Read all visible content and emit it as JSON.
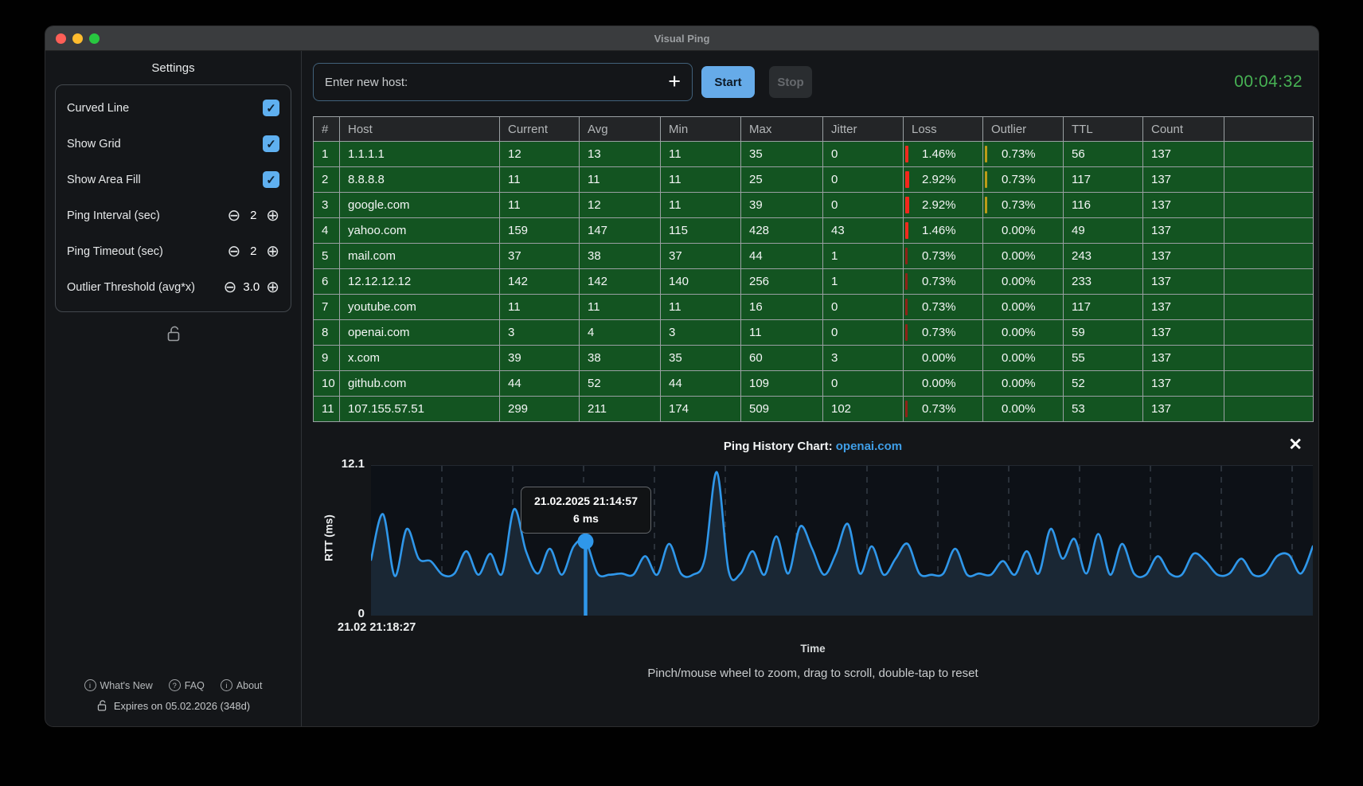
{
  "colors": {
    "accent_blue": "#66abe9",
    "row_green": "#135421",
    "timer_green": "#47b254",
    "loss_red": "#ee2a1e",
    "outlier_yellow": "#bb9c17",
    "chart_line_blue": "#2f97ea"
  },
  "window": {
    "title": "Visual Ping"
  },
  "sidebar": {
    "title": "Settings",
    "check_glyph": "✓",
    "minus_glyph": "⊖",
    "plus_glyph": "⊕",
    "checkboxes": [
      {
        "label": "Curved Line",
        "checked": true
      },
      {
        "label": "Show Grid",
        "checked": true
      },
      {
        "label": "Show Area Fill",
        "checked": true
      }
    ],
    "steppers": [
      {
        "label": "Ping Interval (sec)",
        "value": "2"
      },
      {
        "label": "Ping Timeout (sec)",
        "value": "2"
      },
      {
        "label": "Outlier Threshold (avg*x)",
        "value": "3.0"
      }
    ],
    "footer_links": [
      {
        "icon_letter": "i",
        "label": "What's New"
      },
      {
        "icon_letter": "?",
        "label": "FAQ"
      },
      {
        "icon_letter": "i",
        "label": "About"
      }
    ],
    "license": "Expires on 05.02.2026 (348d)"
  },
  "toolbar": {
    "host_input_placeholder": "Enter new host:",
    "add_glyph": "+",
    "start_label": "Start",
    "stop_label": "Stop",
    "timer": "00:04:32"
  },
  "table": {
    "columns": [
      "#",
      "Host",
      "Current",
      "Avg",
      "Min",
      "Max",
      "Jitter",
      "Loss",
      "Outlier",
      "TTL",
      "Count",
      ""
    ],
    "rows": [
      {
        "num": "1",
        "host": "1.1.1.1",
        "current": "12",
        "avg": "13",
        "min": "11",
        "max": "35",
        "jitter": "0",
        "loss": "1.46%",
        "loss_level": "med",
        "outlier": "0.73%",
        "outlier_level": "low",
        "ttl": "56",
        "count": "137"
      },
      {
        "num": "2",
        "host": "8.8.8.8",
        "current": "11",
        "avg": "11",
        "min": "11",
        "max": "25",
        "jitter": "0",
        "loss": "2.92%",
        "loss_level": "high",
        "outlier": "0.73%",
        "outlier_level": "low",
        "ttl": "117",
        "count": "137"
      },
      {
        "num": "3",
        "host": "google.com",
        "current": "11",
        "avg": "12",
        "min": "11",
        "max": "39",
        "jitter": "0",
        "loss": "2.92%",
        "loss_level": "high",
        "outlier": "0.73%",
        "outlier_level": "low",
        "ttl": "116",
        "count": "137"
      },
      {
        "num": "4",
        "host": "yahoo.com",
        "current": "159",
        "avg": "147",
        "min": "115",
        "max": "428",
        "jitter": "43",
        "loss": "1.46%",
        "loss_level": "med",
        "outlier": "0.00%",
        "outlier_level": "none",
        "ttl": "49",
        "count": "137"
      },
      {
        "num": "5",
        "host": "mail.com",
        "current": "37",
        "avg": "38",
        "min": "37",
        "max": "44",
        "jitter": "1",
        "loss": "0.73%",
        "loss_level": "low",
        "outlier": "0.00%",
        "outlier_level": "none",
        "ttl": "243",
        "count": "137"
      },
      {
        "num": "6",
        "host": "12.12.12.12",
        "current": "142",
        "avg": "142",
        "min": "140",
        "max": "256",
        "jitter": "1",
        "loss": "0.73%",
        "loss_level": "low",
        "outlier": "0.00%",
        "outlier_level": "none",
        "ttl": "233",
        "count": "137"
      },
      {
        "num": "7",
        "host": "youtube.com",
        "current": "11",
        "avg": "11",
        "min": "11",
        "max": "16",
        "jitter": "0",
        "loss": "0.73%",
        "loss_level": "low",
        "outlier": "0.00%",
        "outlier_level": "none",
        "ttl": "117",
        "count": "137"
      },
      {
        "num": "8",
        "host": "openai.com",
        "current": "3",
        "avg": "4",
        "min": "3",
        "max": "11",
        "jitter": "0",
        "loss": "0.73%",
        "loss_level": "low",
        "outlier": "0.00%",
        "outlier_level": "none",
        "ttl": "59",
        "count": "137"
      },
      {
        "num": "9",
        "host": "x.com",
        "current": "39",
        "avg": "38",
        "min": "35",
        "max": "60",
        "jitter": "3",
        "loss": "0.00%",
        "loss_level": "none",
        "outlier": "0.00%",
        "outlier_level": "none",
        "ttl": "55",
        "count": "137"
      },
      {
        "num": "10",
        "host": "github.com",
        "current": "44",
        "avg": "52",
        "min": "44",
        "max": "109",
        "jitter": "0",
        "loss": "0.00%",
        "loss_level": "none",
        "outlier": "0.00%",
        "outlier_level": "none",
        "ttl": "52",
        "count": "137"
      },
      {
        "num": "11",
        "host": "107.155.57.51",
        "current": "299",
        "avg": "211",
        "min": "174",
        "max": "509",
        "jitter": "102",
        "loss": "0.73%",
        "loss_level": "low",
        "outlier": "0.00%",
        "outlier_level": "none",
        "ttl": "53",
        "count": "137"
      }
    ]
  },
  "chart": {
    "title_prefix": "Ping History Chart: ",
    "host": "openai.com",
    "close_glyph": "✕",
    "y_max_label": "12.1",
    "y_min_label": "0",
    "y_axis_label": "RTT (ms)",
    "x_first_tick": "21.02 21:18:27",
    "x_axis_label": "Time",
    "hint": "Pinch/mouse wheel to zoom, drag to scroll, double-tap to reset",
    "tooltip": {
      "line1": "21.02.2025 21:14:57",
      "line2": "6 ms"
    }
  },
  "chart_data": {
    "type": "line",
    "title": "Ping History Chart: openai.com",
    "xlabel": "Time",
    "ylabel": "RTT (ms)",
    "ylim": [
      0,
      12.1
    ],
    "x_start_label": "21.02 21:18:27",
    "grid": "vertical-dashed",
    "legend": "none",
    "marker": {
      "index": 18,
      "value": 6,
      "time_label": "21.02.2025 21:14:57",
      "value_label": "6 ms"
    },
    "series": [
      {
        "name": "openai.com RTT (ms)",
        "values": [
          4.5,
          8.2,
          3.2,
          7.0,
          4.6,
          4.4,
          3.3,
          3.4,
          5.2,
          3.3,
          5.0,
          3.4,
          8.6,
          5.2,
          3.4,
          5.4,
          3.3,
          5.6,
          6.0,
          3.4,
          3.3,
          3.4,
          3.3,
          4.8,
          3.3,
          5.8,
          3.4,
          3.3,
          4.6,
          11.6,
          3.6,
          3.4,
          5.2,
          3.3,
          6.4,
          3.4,
          7.2,
          5.4,
          3.3,
          5.0,
          7.4,
          3.4,
          5.6,
          3.3,
          4.6,
          5.8,
          3.4,
          3.3,
          3.4,
          5.4,
          3.3,
          3.4,
          3.3,
          4.4,
          3.3,
          5.2,
          3.4,
          7.0,
          4.6,
          6.2,
          3.4,
          6.6,
          3.3,
          5.8,
          3.4,
          3.3,
          4.8,
          3.4,
          3.3,
          5.0,
          4.4,
          3.3,
          3.4,
          4.6,
          3.3,
          3.4,
          4.8,
          4.9,
          3.4,
          5.6
        ]
      }
    ]
  }
}
